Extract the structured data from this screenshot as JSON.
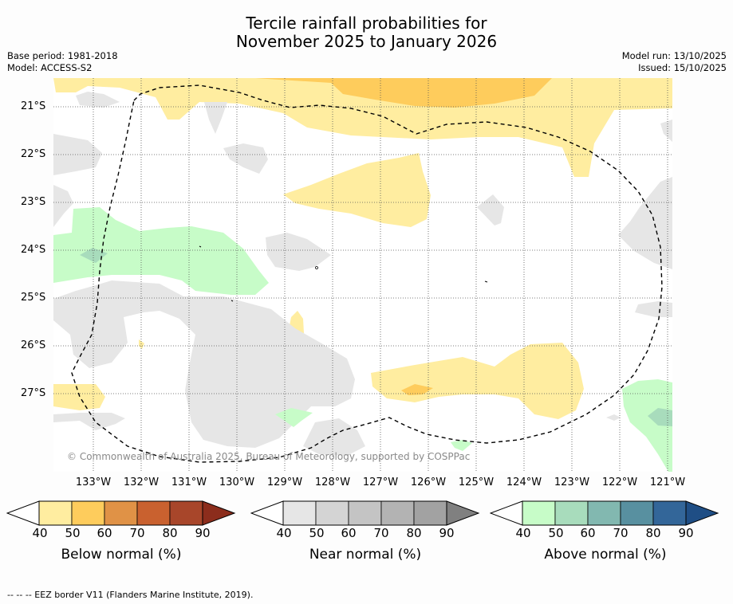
{
  "title_line1": "Tercile rainfall probabilities for",
  "title_line2": "November 2025 to January 2026",
  "base_period": "Base period: 1981-2018",
  "model": "Model: ACCESS-S2",
  "model_run": "Model run: 13/10/2025",
  "issued": "Issued: 15/10/2025",
  "lat_labels": [
    "21°S",
    "22°S",
    "23°S",
    "24°S",
    "25°S",
    "26°S",
    "27°S"
  ],
  "lon_labels": [
    "133°W",
    "132°W",
    "131°W",
    "130°W",
    "129°W",
    "128°W",
    "127°W",
    "126°W",
    "125°W",
    "124°W",
    "123°W",
    "122°W",
    "121°W"
  ],
  "copyright": "© Commonwealth of Australia 2025, Bureau of Meteorology, supported by COSPPac",
  "colorbars": [
    {
      "title": "Below normal (%)",
      "ticks": [
        "40",
        "50",
        "60",
        "70",
        "80",
        "90"
      ],
      "colors": [
        "#ffeda0",
        "#fecc5c",
        "#e09246",
        "#c9612f",
        "#a8462a",
        "#8c2d1c"
      ]
    },
    {
      "title": "Near normal (%)",
      "ticks": [
        "40",
        "50",
        "60",
        "70",
        "80",
        "90"
      ],
      "colors": [
        "#e6e6e6",
        "#d4d4d4",
        "#c4c4c4",
        "#b3b3b3",
        "#a2a2a2",
        "#808080"
      ]
    },
    {
      "title": "Above normal (%)",
      "ticks": [
        "40",
        "50",
        "60",
        "70",
        "80",
        "90"
      ],
      "colors": [
        "#c7fcc8",
        "#a8dcbc",
        "#82b8b0",
        "#5890a0",
        "#336699",
        "#1f4e85"
      ]
    }
  ],
  "footnote": "--  --  -- EEZ border V11 (Flanders Marine Institute, 2019)."
}
